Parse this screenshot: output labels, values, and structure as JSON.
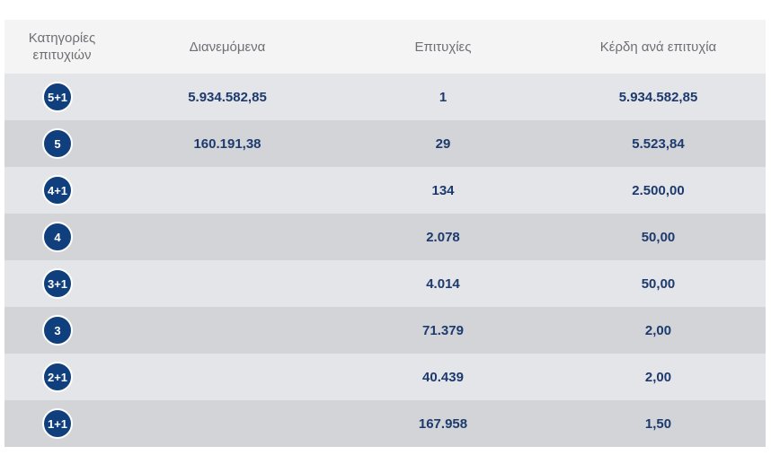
{
  "header": {
    "category": "Κατηγορίες επιτυχιών",
    "distributed": "Διανεμόμενα",
    "winners": "Επιτυχίες",
    "prize_per_winner": "Κέρδη ανά επιτυχία"
  },
  "rows": [
    {
      "category": "5+1",
      "distributed": "5.934.582,85",
      "winners": "1",
      "prize": "5.934.582,85"
    },
    {
      "category": "5",
      "distributed": "160.191,38",
      "winners": "29",
      "prize": "5.523,84"
    },
    {
      "category": "4+1",
      "distributed": "",
      "winners": "134",
      "prize": "2.500,00"
    },
    {
      "category": "4",
      "distributed": "",
      "winners": "2.078",
      "prize": "50,00"
    },
    {
      "category": "3+1",
      "distributed": "",
      "winners": "4.014",
      "prize": "50,00"
    },
    {
      "category": "3",
      "distributed": "",
      "winners": "71.379",
      "prize": "2,00"
    },
    {
      "category": "2+1",
      "distributed": "",
      "winners": "40.439",
      "prize": "2,00"
    },
    {
      "category": "1+1",
      "distributed": "",
      "winners": "167.958",
      "prize": "1,50"
    }
  ],
  "colors": {
    "badge": "#0f3f7d",
    "row_light": "#e4e5e8",
    "row_dark": "#d3d4d7",
    "header_bg": "#f4f4f5",
    "value_text": "#1d3a6e"
  }
}
